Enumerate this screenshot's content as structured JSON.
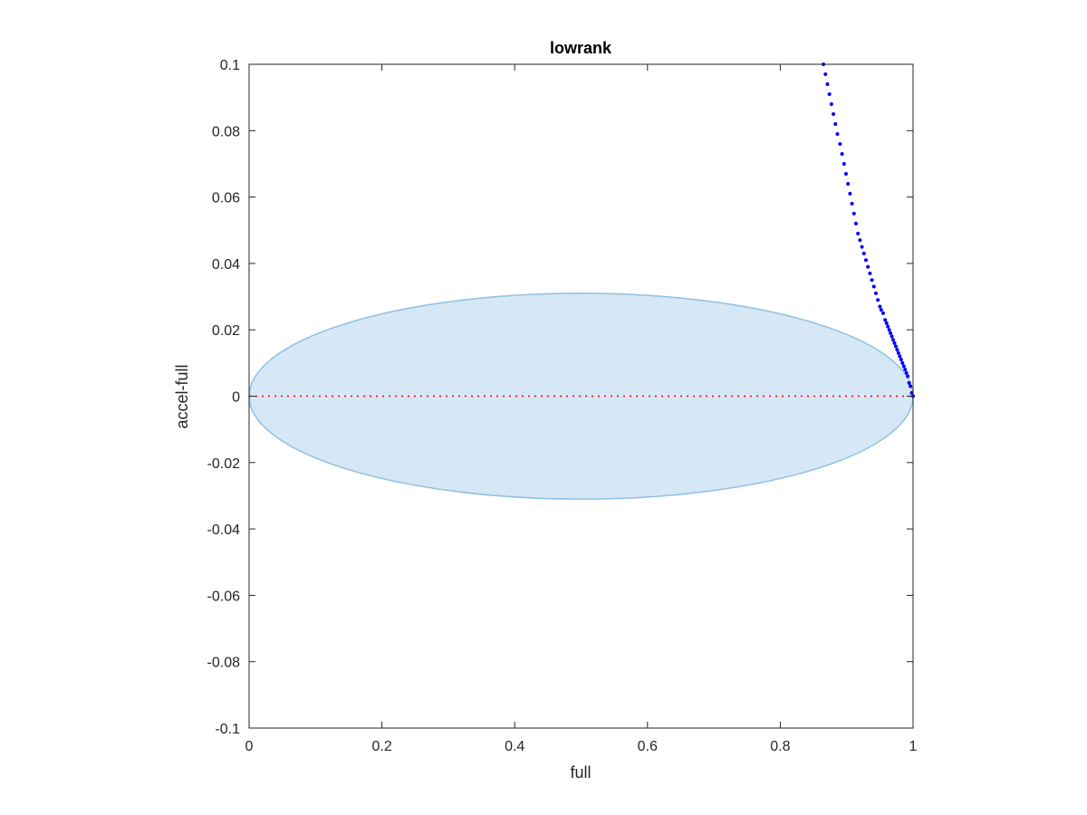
{
  "chart_data": {
    "type": "scatter",
    "title": "lowrank",
    "xlabel": "full",
    "ylabel": "accel-full",
    "xlim": [
      0,
      1
    ],
    "ylim": [
      -0.1,
      0.1
    ],
    "xticks": [
      0,
      0.2,
      0.4,
      0.6,
      0.8,
      1
    ],
    "xtick_labels": [
      "0",
      "0.2",
      "0.4",
      "0.6",
      "0.8",
      "1"
    ],
    "yticks": [
      -0.1,
      -0.08,
      -0.06,
      -0.04,
      -0.02,
      0,
      0.02,
      0.04,
      0.06,
      0.08,
      0.1
    ],
    "ytick_labels": [
      "-0.1",
      "-0.08",
      "-0.06",
      "-0.04",
      "-0.02",
      "0",
      "0.02",
      "0.04",
      "0.06",
      "0.08",
      "0.1"
    ],
    "grid": false,
    "ellipse": {
      "center": [
        0.5,
        0
      ],
      "radius_x": 0.5,
      "radius_y": 0.031,
      "fill_color": "#d6e7f5",
      "edge_color": "#8ec1e3"
    },
    "reference_line": {
      "y": 0,
      "x_range": [
        0,
        1
      ],
      "color": "#ff0000",
      "style": "dotted"
    },
    "series": [
      {
        "color": "#0000ff",
        "x": [
          0.865,
          0.868,
          0.871,
          0.874,
          0.877,
          0.88,
          0.883,
          0.886,
          0.89,
          0.893,
          0.896,
          0.899,
          0.902,
          0.905,
          0.908,
          0.911,
          0.914,
          0.917,
          0.92,
          0.923,
          0.926,
          0.929,
          0.932,
          0.935,
          0.938,
          0.941,
          0.944,
          0.947,
          0.95,
          0.952,
          0.955,
          0.958,
          0.96,
          0.962,
          0.964,
          0.966,
          0.968,
          0.97,
          0.972,
          0.974,
          0.976,
          0.978,
          0.98,
          0.982,
          0.984,
          0.986,
          0.988,
          0.99,
          0.992,
          0.994,
          0.996,
          0.998,
          1.0
        ],
        "y": [
          0.1,
          0.097,
          0.094,
          0.091,
          0.088,
          0.085,
          0.082,
          0.079,
          0.076,
          0.073,
          0.07,
          0.067,
          0.064,
          0.061,
          0.058,
          0.055,
          0.052,
          0.049,
          0.047,
          0.045,
          0.043,
          0.041,
          0.039,
          0.037,
          0.035,
          0.033,
          0.031,
          0.029,
          0.027,
          0.026,
          0.025,
          0.023,
          0.022,
          0.021,
          0.02,
          0.019,
          0.018,
          0.017,
          0.016,
          0.015,
          0.014,
          0.013,
          0.012,
          0.011,
          0.01,
          0.009,
          0.008,
          0.007,
          0.006,
          0.004,
          0.003,
          0.001,
          0.0
        ]
      }
    ]
  }
}
